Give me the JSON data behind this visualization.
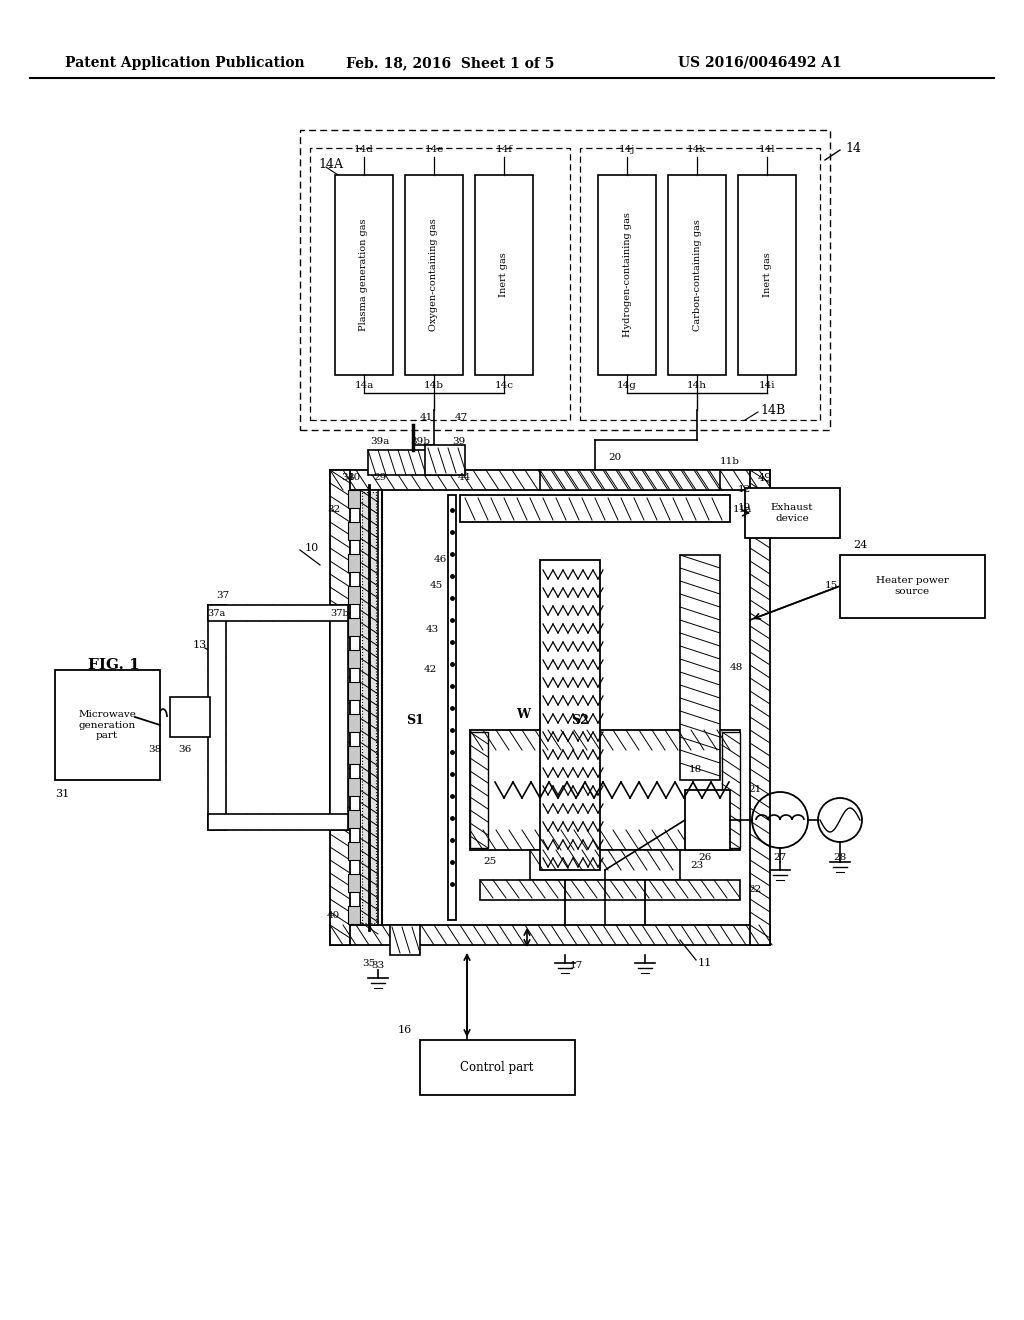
{
  "bg_color": "#ffffff",
  "line_color": "#000000",
  "header_left": "Patent Application Publication",
  "header_mid": "Feb. 18, 2016  Sheet 1 of 5",
  "header_right": "US 2016/0046492 A1",
  "fig_label": "FIG. 1",
  "microwave_label": "Microwave\ngeneration\npart",
  "exhaust_label": "Exhaust\ndevice",
  "heater_label": "Heater power\nsource",
  "control_label": "Control part"
}
